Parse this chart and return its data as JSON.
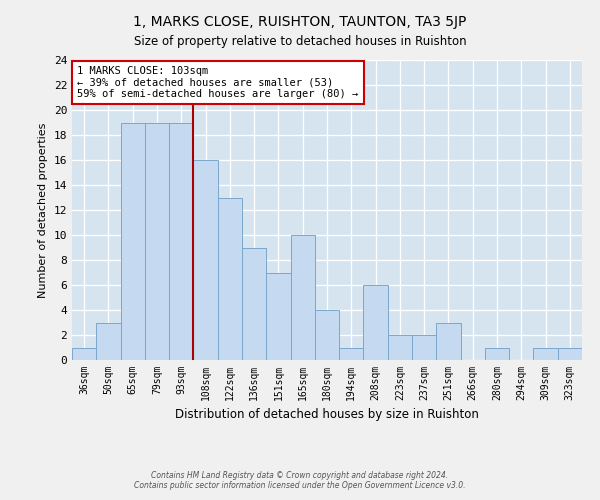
{
  "title": "1, MARKS CLOSE, RUISHTON, TAUNTON, TA3 5JP",
  "subtitle": "Size of property relative to detached houses in Ruishton",
  "xlabel": "Distribution of detached houses by size in Ruishton",
  "ylabel": "Number of detached properties",
  "bar_labels": [
    "36sqm",
    "50sqm",
    "65sqm",
    "79sqm",
    "93sqm",
    "108sqm",
    "122sqm",
    "136sqm",
    "151sqm",
    "165sqm",
    "180sqm",
    "194sqm",
    "208sqm",
    "223sqm",
    "237sqm",
    "251sqm",
    "266sqm",
    "280sqm",
    "294sqm",
    "309sqm",
    "323sqm"
  ],
  "bar_values": [
    1,
    3,
    19,
    19,
    19,
    16,
    13,
    9,
    7,
    10,
    4,
    1,
    6,
    2,
    2,
    3,
    0,
    1,
    0,
    1,
    1
  ],
  "bar_color": "#c5d9f0",
  "bar_edge_color": "#7ba7cc",
  "marker_index": 5,
  "marker_label": "1 MARKS CLOSE: 103sqm",
  "annotation_line1": "← 39% of detached houses are smaller (53)",
  "annotation_line2": "59% of semi-detached houses are larger (80) →",
  "annotation_box_color": "#ffffff",
  "annotation_box_edge": "#cc0000",
  "marker_line_color": "#aa0000",
  "ylim": [
    0,
    24
  ],
  "yticks": [
    0,
    2,
    4,
    6,
    8,
    10,
    12,
    14,
    16,
    18,
    20,
    22,
    24
  ],
  "footer_line1": "Contains HM Land Registry data © Crown copyright and database right 2024.",
  "footer_line2": "Contains public sector information licensed under the Open Government Licence v3.0.",
  "grid_color": "#ffffff",
  "bg_color": "#d6e4f0",
  "fig_bg_color": "#f0f0f0"
}
